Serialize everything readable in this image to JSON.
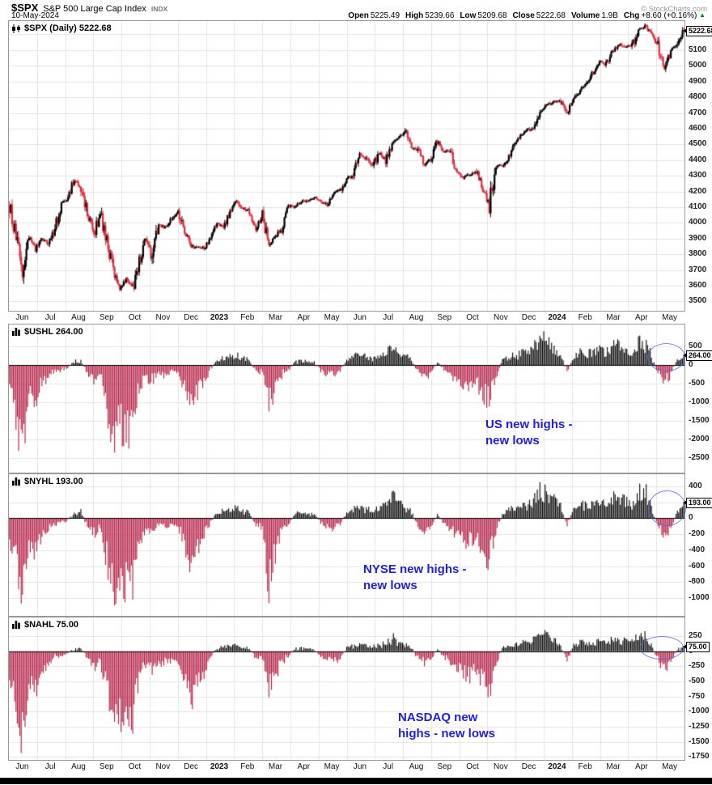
{
  "header": {
    "symbol": "$SPX",
    "name": "S&P 500 Large Cap Index",
    "exchange": "INDX",
    "date": "10-May-2024",
    "copyright": "© StockCharts.com",
    "quote": {
      "open_label": "Open",
      "open": "5225.49",
      "high_label": "High",
      "high": "5239.66",
      "low_label": "Low",
      "low": "5209.68",
      "close_label": "Close",
      "close": "5222.68",
      "volume_label": "Volume",
      "volume": "1.9B",
      "chg_label": "Chg",
      "chg": "+8.60 (+0.16%)",
      "chg_direction": "▲"
    }
  },
  "colors": {
    "candle_up": "#000000",
    "candle_down": "#dd2e3e",
    "hist_positive": "#000000",
    "hist_negative": "#b2183f",
    "annotation_blue": "#1f1fd6",
    "chg_green": "#008800",
    "grid": "#e4e4e4"
  },
  "annotations": [
    {
      "text": "US new highs -\nnew lows"
    },
    {
      "text": "NYSE new highs -\nnew lows"
    },
    {
      "text": "NASDAQ new\nhighs - new lows"
    }
  ],
  "chart_data": {
    "x_axis_labels": [
      "Jun",
      "Jul",
      "Aug",
      "Sep",
      "Oct",
      "Nov",
      "Dec",
      "2023",
      "Feb",
      "Mar",
      "Apr",
      "May",
      "Jun",
      "Jul",
      "Aug",
      "Sep",
      "Oct",
      "Nov",
      "Dec",
      "2024",
      "Feb",
      "Mar",
      "Apr",
      "May"
    ],
    "x_axis_bold": [
      "2023",
      "2024"
    ],
    "resolution_note": "weekly estimates read from chart, Jun 2022 - 10 May 2024",
    "panels": [
      {
        "type": "candlestick",
        "id": "spx",
        "legend": "$SPX (Daily) 5222.68",
        "last_value": 5222.68,
        "last_label": "5222.68",
        "ylim": [
          3440,
          5285
        ],
        "yticks": [
          5100,
          5000,
          4900,
          4800,
          4700,
          4600,
          4500,
          4400,
          4300,
          4200,
          4100,
          4000,
          3900,
          3800,
          3700,
          3600,
          3500
        ],
        "weekly_closes": [
          4109,
          3901,
          3675,
          3912,
          3825,
          3899,
          3863,
          3962,
          4130,
          4145,
          4280,
          4228,
          4058,
          3924,
          4067,
          3873,
          3693,
          3586,
          3640,
          3583,
          3752,
          3901,
          3771,
          3993,
          3965,
          4026,
          4072,
          3934,
          3852,
          3844,
          3840,
          3895,
          3999,
          3973,
          4071,
          4136,
          4090,
          4079,
          3970,
          4046,
          3862,
          3917,
          3971,
          4109,
          4105,
          4138,
          4134,
          4169,
          4136,
          4124,
          4192,
          4205,
          4282,
          4299,
          4439,
          4410,
          4348,
          4450,
          4399,
          4505,
          4536,
          4582,
          4478,
          4464,
          4370,
          4406,
          4516,
          4458,
          4450,
          4320,
          4288,
          4309,
          4328,
          4224,
          4117,
          4358,
          4365,
          4415,
          4514,
          4559,
          4595,
          4604,
          4719,
          4755,
          4770,
          4770,
          4697,
          4784,
          4840,
          4891,
          4959,
          5027,
          5006,
          5089,
          5137,
          5124,
          5117,
          5234,
          5254,
          5204,
          5123,
          4967,
          5100,
          5128,
          5222.68
        ]
      },
      {
        "type": "bar",
        "id": "ushl",
        "legend": "$USHL 264.00",
        "last_value": 264,
        "last_label": "264.00",
        "ylim": [
          -2900,
          1100
        ],
        "yticks": [
          500,
          0,
          -500,
          -1000,
          -1500,
          -2000,
          -2500
        ],
        "weekly_values": [
          -900,
          -1600,
          -2700,
          -800,
          -1100,
          -500,
          -350,
          -200,
          -150,
          -100,
          120,
          150,
          -250,
          -500,
          -300,
          -1300,
          -2450,
          -1700,
          -2100,
          -1800,
          -700,
          -350,
          -500,
          -250,
          -350,
          -200,
          -300,
          -700,
          -1500,
          -800,
          -600,
          -150,
          150,
          200,
          250,
          300,
          200,
          150,
          -200,
          -250,
          -1150,
          -700,
          -300,
          -150,
          100,
          150,
          100,
          80,
          -150,
          -250,
          -300,
          -200,
          150,
          250,
          300,
          250,
          200,
          300,
          350,
          700,
          450,
          300,
          150,
          -200,
          -350,
          -250,
          100,
          -150,
          -300,
          -500,
          -600,
          -700,
          -500,
          -900,
          -1150,
          -400,
          150,
          250,
          300,
          350,
          400,
          550,
          900,
          700,
          500,
          300,
          -200,
          250,
          400,
          450,
          350,
          500,
          400,
          550,
          600,
          450,
          400,
          700,
          650,
          300,
          -250,
          -450,
          -300,
          150,
          264
        ]
      },
      {
        "type": "bar",
        "id": "nyhl",
        "legend": "$NYHL 193.00",
        "last_value": 193,
        "last_label": "193.00",
        "ylim": [
          -1220,
          550
        ],
        "yticks": [
          400,
          200,
          0,
          -200,
          -400,
          -600,
          -800,
          -1000
        ],
        "weekly_values": [
          -450,
          -700,
          -1050,
          -350,
          -500,
          -250,
          -150,
          -80,
          -50,
          -40,
          80,
          100,
          -120,
          -250,
          -150,
          -600,
          -1000,
          -800,
          -1100,
          -850,
          -350,
          -150,
          -200,
          -100,
          -150,
          -80,
          -150,
          -350,
          -650,
          -400,
          -250,
          -60,
          80,
          100,
          120,
          150,
          100,
          80,
          -100,
          -120,
          -950,
          -500,
          -150,
          -80,
          60,
          80,
          60,
          50,
          -80,
          -120,
          -150,
          -100,
          80,
          120,
          150,
          130,
          100,
          150,
          180,
          320,
          220,
          150,
          80,
          -100,
          -180,
          -120,
          60,
          -80,
          -150,
          -250,
          -300,
          -350,
          -250,
          -450,
          -600,
          -200,
          80,
          130,
          160,
          180,
          200,
          280,
          420,
          350,
          260,
          160,
          -100,
          130,
          200,
          230,
          180,
          260,
          210,
          280,
          300,
          240,
          220,
          380,
          430,
          160,
          -130,
          -240,
          -160,
          90,
          193
        ]
      },
      {
        "type": "bar",
        "id": "nahl",
        "legend": "$NAHL 75.00",
        "last_value": 75,
        "last_label": "75.00",
        "ylim": [
          -1800,
          560
        ],
        "yticks": [
          250,
          0,
          -250,
          -500,
          -750,
          -1000,
          -1250,
          -1500,
          -1750
        ],
        "weekly_values": [
          -600,
          -1050,
          -1800,
          -550,
          -700,
          -350,
          -250,
          -120,
          -80,
          -60,
          60,
          70,
          -150,
          -300,
          -200,
          -800,
          -1600,
          -1100,
          -1400,
          -1150,
          -450,
          -250,
          -350,
          -180,
          -250,
          -150,
          -200,
          -450,
          -950,
          -550,
          -400,
          -100,
          60,
          80,
          100,
          120,
          80,
          60,
          -150,
          -180,
          -700,
          -450,
          -200,
          -100,
          40,
          60,
          40,
          30,
          -100,
          -160,
          -200,
          -130,
          60,
          100,
          120,
          100,
          80,
          120,
          140,
          260,
          180,
          120,
          60,
          -130,
          -230,
          -160,
          40,
          -100,
          -200,
          -350,
          -400,
          -450,
          -350,
          -600,
          -750,
          -250,
          60,
          100,
          130,
          150,
          160,
          220,
          350,
          280,
          200,
          120,
          -150,
          100,
          160,
          180,
          140,
          200,
          160,
          220,
          240,
          190,
          170,
          300,
          330,
          120,
          -180,
          -320,
          -220,
          60,
          75
        ]
      }
    ]
  }
}
